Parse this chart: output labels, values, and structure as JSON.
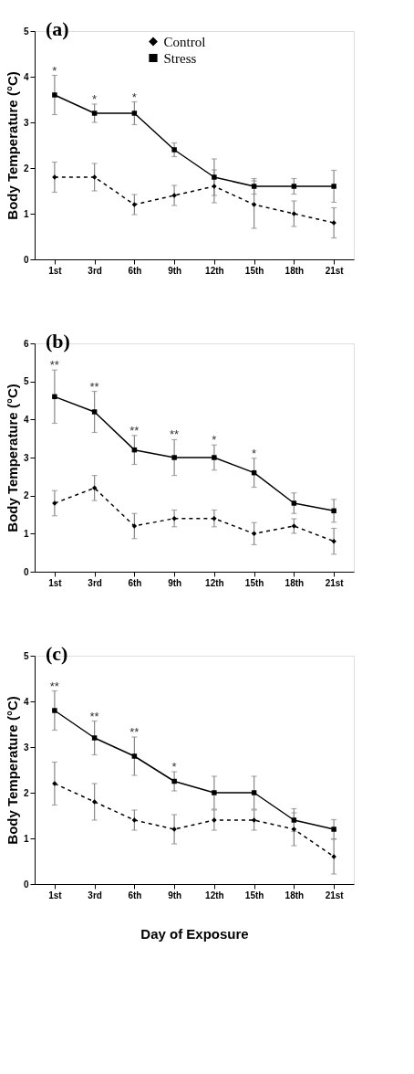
{
  "chart_data": [
    {
      "type": "line",
      "title": "(a)",
      "ylabel": "Body Temperature (°C)",
      "categories": [
        "1st",
        "3rd",
        "6th",
        "9th",
        "12th",
        "15th",
        "18th",
        "21st"
      ],
      "ylim": [
        0,
        5
      ],
      "yticks": [
        0,
        1,
        2,
        3,
        4,
        5
      ],
      "grid": false,
      "legend": "top",
      "series": [
        {
          "name": "Control",
          "color": "#000000",
          "marker": "diamond",
          "line_style": "dashed",
          "values": [
            1.8,
            1.8,
            1.2,
            1.4,
            1.6,
            1.2,
            1.0,
            0.8
          ],
          "errors": [
            0.33,
            0.3,
            0.22,
            0.22,
            0.36,
            0.52,
            0.28,
            0.33
          ]
        },
        {
          "name": "Stress",
          "color": "#000000",
          "marker": "square",
          "line_style": "solid",
          "values": [
            3.6,
            3.2,
            3.2,
            2.4,
            1.8,
            1.6,
            1.6,
            1.6
          ],
          "errors": [
            0.43,
            0.2,
            0.25,
            0.15,
            0.4,
            0.17,
            0.17,
            0.35
          ]
        }
      ],
      "annotations": [
        {
          "text": "*",
          "x": "1st",
          "y": 3.6
        },
        {
          "text": "*",
          "x": "3rd",
          "y": 3.2
        },
        {
          "text": "*",
          "x": "6th",
          "y": 3.2
        }
      ]
    },
    {
      "type": "line",
      "title": "(b)",
      "ylabel": "Body Temperature (°C)",
      "categories": [
        "1st",
        "3rd",
        "6th",
        "9th",
        "12th",
        "15th",
        "18th",
        "21st"
      ],
      "ylim": [
        0,
        6
      ],
      "yticks": [
        0,
        1,
        2,
        3,
        4,
        5,
        6
      ],
      "grid": false,
      "series": [
        {
          "color": "#000000",
          "marker": "diamond",
          "line_style": "dashed",
          "values": [
            1.8,
            2.2,
            1.2,
            1.4,
            1.4,
            1.0,
            1.2,
            0.8
          ],
          "errors": [
            0.33,
            0.33,
            0.33,
            0.22,
            0.22,
            0.29,
            0.19,
            0.34
          ]
        },
        {
          "color": "#000000",
          "marker": "square",
          "line_style": "solid",
          "values": [
            4.6,
            4.2,
            3.2,
            3.0,
            3.0,
            2.6,
            1.8,
            1.6
          ],
          "errors": [
            0.7,
            0.54,
            0.38,
            0.47,
            0.33,
            0.38,
            0.27,
            0.3
          ]
        }
      ],
      "annotations": [
        {
          "text": "**",
          "x": "1st",
          "y": 4.6
        },
        {
          "text": "**",
          "x": "3rd",
          "y": 4.2
        },
        {
          "text": "**",
          "x": "6th",
          "y": 3.2
        },
        {
          "text": "**",
          "x": "9th",
          "y": 3.0
        },
        {
          "text": "*",
          "x": "12th",
          "y": 3.0
        },
        {
          "text": "*",
          "x": "15th",
          "y": 2.6
        }
      ]
    },
    {
      "type": "line",
      "title": "(c)",
      "xlabel": "Day of Exposure",
      "ylabel": "Body Temperature (°C)",
      "categories": [
        "1st",
        "3rd",
        "6th",
        "9th",
        "12th",
        "15th",
        "18th",
        "21st"
      ],
      "ylim": [
        0,
        5
      ],
      "yticks": [
        0,
        1,
        2,
        3,
        4,
        5
      ],
      "grid": false,
      "series": [
        {
          "color": "#000000",
          "marker": "diamond",
          "line_style": "dashed",
          "values": [
            2.2,
            1.8,
            1.4,
            1.2,
            1.4,
            1.4,
            1.2,
            0.6
          ],
          "errors": [
            0.47,
            0.4,
            0.22,
            0.32,
            0.22,
            0.22,
            0.36,
            0.38
          ]
        },
        {
          "color": "#000000",
          "marker": "square",
          "line_style": "solid",
          "values": [
            3.8,
            3.2,
            2.8,
            2.25,
            2.0,
            2.0,
            1.4,
            1.2
          ],
          "errors": [
            0.43,
            0.37,
            0.42,
            0.21,
            0.36,
            0.36,
            0.25,
            0.21
          ]
        }
      ],
      "annotations": [
        {
          "text": "**",
          "x": "1st",
          "y": 3.8
        },
        {
          "text": "**",
          "x": "3rd",
          "y": 3.2
        },
        {
          "text": "**",
          "x": "6th",
          "y": 2.8
        },
        {
          "text": "*",
          "x": "9th",
          "y": 2.25
        }
      ]
    }
  ]
}
